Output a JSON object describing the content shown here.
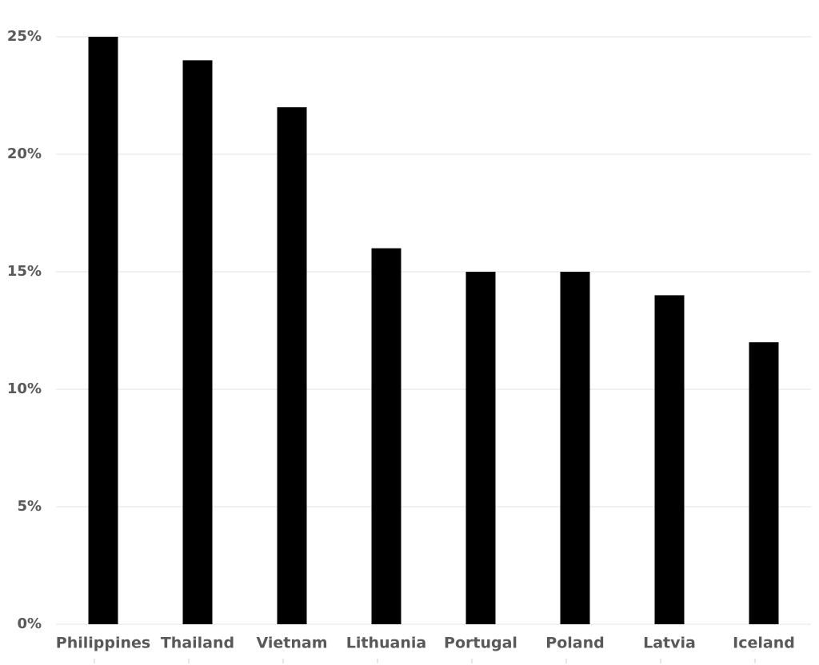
{
  "chart_data": {
    "type": "bar",
    "categories": [
      "Philippines",
      "Thailand",
      "Vietnam",
      "Lithuania",
      "Portugal",
      "Poland",
      "Latvia",
      "Iceland"
    ],
    "values": [
      25,
      24,
      22,
      16,
      15,
      15,
      14,
      12
    ],
    "color": "#000000",
    "ylim": [
      0,
      25
    ],
    "yticks": [
      {
        "value": 0,
        "label": "0%"
      },
      {
        "value": 5,
        "label": "5%"
      },
      {
        "value": 10,
        "label": "10%"
      },
      {
        "value": 15,
        "label": "15%"
      },
      {
        "value": 20,
        "label": "20%"
      },
      {
        "value": 25,
        "label": "25%"
      }
    ],
    "grid": true
  }
}
